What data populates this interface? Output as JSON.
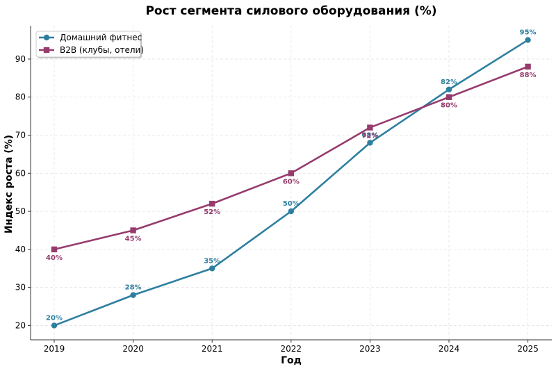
{
  "chart_data": {
    "type": "line",
    "title": "Рост сегмента силового оборудования (%)",
    "xlabel": "Год",
    "ylabel": "Индекс роста (%)",
    "categories": [
      "2019",
      "2020",
      "2021",
      "2022",
      "2023",
      "2024",
      "2025"
    ],
    "ylim": [
      16.25,
      98.75
    ],
    "yticks": [
      20,
      30,
      40,
      50,
      60,
      70,
      80,
      90
    ],
    "grid": true,
    "legend_position": "top-left",
    "series": [
      {
        "name": "Домашний фитнес",
        "values": [
          20,
          28,
          35,
          50,
          68,
          82,
          95
        ],
        "labels": [
          "20%",
          "28%",
          "35%",
          "50%",
          "68%",
          "82%",
          "95%"
        ],
        "color": "#2e7f9f",
        "marker": "circle",
        "label_position": "above"
      },
      {
        "name": "B2B (клубы, отели)",
        "values": [
          40,
          45,
          52,
          60,
          72,
          80,
          88
        ],
        "labels": [
          "40%",
          "45%",
          "52%",
          "60%",
          "72%",
          "80%",
          "88%"
        ],
        "color": "#963b6e",
        "marker": "square",
        "label_position": "below"
      }
    ]
  }
}
